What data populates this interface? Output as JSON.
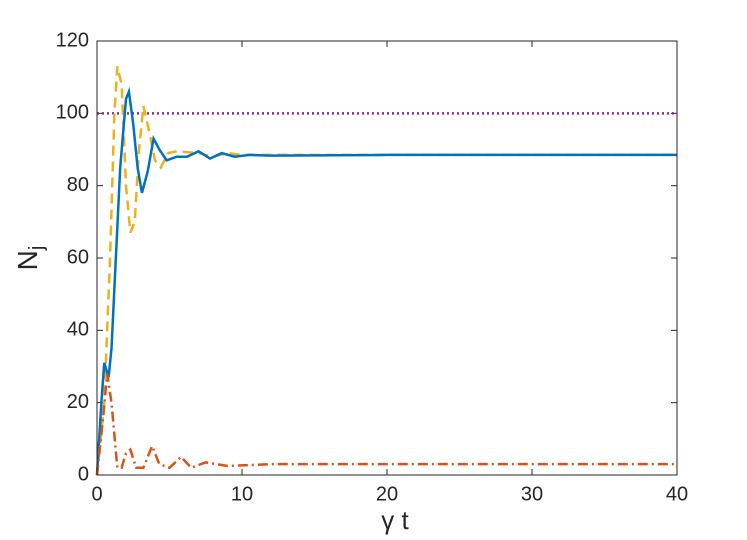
{
  "chart_data": {
    "type": "line",
    "xlabel": "γ t",
    "ylabel": "N",
    "ylabel_subscript": "j",
    "xlim": [
      0,
      40
    ],
    "xticks": [
      0,
      10,
      20,
      30,
      40
    ],
    "ylim": [
      0,
      120
    ],
    "yticks": [
      0,
      20,
      40,
      60,
      80,
      100,
      120
    ],
    "grid": false,
    "series": [
      {
        "color": "#7e2f8e",
        "dash": "dotted",
        "x": [
          0,
          40
        ],
        "values": [
          100,
          100
        ]
      },
      {
        "color": "#edb120",
        "dash": "dashed",
        "x": [
          0,
          0.5,
          0.9,
          1.2,
          1.4,
          1.7,
          2.0,
          2.3,
          2.6,
          2.9,
          3.2,
          3.6,
          4.0,
          4.4,
          4.9,
          5.5,
          7,
          8,
          9,
          10,
          40
        ],
        "values": [
          0,
          20,
          60,
          100,
          113,
          108,
          80,
          67,
          70,
          90,
          102,
          95,
          87,
          85,
          89,
          89.5,
          89,
          88,
          89,
          88.5,
          88.5
        ]
      },
      {
        "color": "#0072bd",
        "dash": "solid",
        "x": [
          0,
          0.3,
          0.5,
          0.8,
          1.0,
          1.3,
          1.6,
          2.0,
          2.2,
          2.5,
          2.8,
          3.1,
          3.5,
          3.9,
          4.3,
          4.8,
          5.5,
          6.2,
          7.0,
          7.8,
          8.6,
          9.5,
          10.5,
          12,
          20,
          30,
          40
        ],
        "values": [
          0,
          20,
          31,
          27,
          35,
          60,
          85,
          104,
          106,
          97,
          85,
          78,
          84,
          93,
          90,
          87,
          88,
          88,
          89.5,
          87.5,
          89,
          88,
          88.5,
          88.3,
          88.5,
          88.5,
          88.5
        ]
      },
      {
        "color": "#d95319",
        "dash": "dashdot",
        "x": [
          0,
          0.4,
          0.7,
          1.0,
          1.4,
          1.7,
          2.0,
          2.3,
          2.7,
          3.2,
          3.8,
          4.3,
          5.0,
          5.8,
          6.5,
          7.5,
          9,
          12,
          40
        ],
        "values": [
          0,
          15,
          28,
          20,
          2,
          2,
          6,
          7,
          2,
          2,
          8,
          3,
          2,
          5,
          2,
          3.5,
          2.5,
          3,
          3
        ]
      }
    ]
  }
}
